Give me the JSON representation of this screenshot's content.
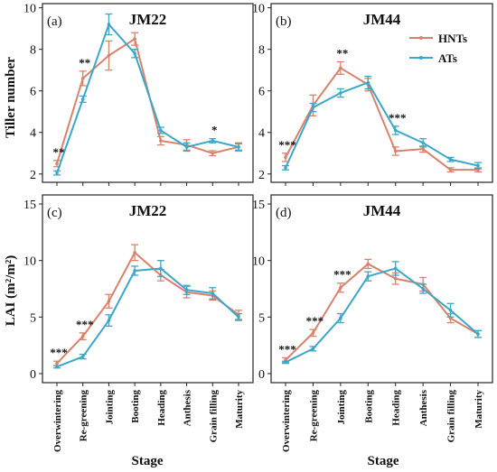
{
  "chart_data": {
    "type": "line",
    "categories": [
      "Overwintering",
      "Re-greening",
      "Jointing",
      "Booting",
      "Heading",
      "Anthesis",
      "Grain filling",
      "Maturity"
    ],
    "xlabel": "Stage",
    "legend": {
      "placement": "top-right",
      "entries": [
        {
          "name": "HNTs",
          "color": "#d9826b"
        },
        {
          "name": "ATs",
          "color": "#3ba7c9"
        }
      ]
    },
    "rows": [
      {
        "ylabel": "Tiller number",
        "ylim": [
          1.6,
          10.2
        ],
        "yticks": [
          2,
          4,
          6,
          8,
          10
        ]
      },
      {
        "ylabel": "LAI (m²/m²)",
        "ylim": [
          -0.8,
          15.8
        ],
        "yticks": [
          0,
          5,
          10,
          15
        ]
      }
    ],
    "panels": [
      {
        "tag": "(a)",
        "title": "JM22",
        "row": 0,
        "col": 0,
        "series": [
          {
            "name": "HNTs",
            "values": [
              2.5,
              6.6,
              7.7,
              8.5,
              3.6,
              3.4,
              3.0,
              3.3
            ],
            "errors": [
              0.15,
              0.35,
              0.7,
              0.3,
              0.2,
              0.25,
              0.12,
              0.2
            ]
          },
          {
            "name": "ATs",
            "values": [
              2.05,
              5.6,
              9.2,
              7.8,
              4.1,
              3.3,
              3.6,
              3.3
            ],
            "errors": [
              0.1,
              0.15,
              0.5,
              0.2,
              0.15,
              0.2,
              0.1,
              0.15
            ]
          }
        ],
        "significance": [
          {
            "category": "Overwintering",
            "label": "**"
          },
          {
            "category": "Re-greening",
            "label": "**"
          },
          {
            "category": "Grain filling",
            "label": "*"
          }
        ]
      },
      {
        "tag": "(b)",
        "title": "JM44",
        "row": 0,
        "col": 1,
        "series": [
          {
            "name": "HNTs",
            "values": [
              2.8,
              5.3,
              7.1,
              6.3,
              3.1,
              3.2,
              2.2,
              2.2
            ],
            "errors": [
              0.2,
              0.5,
              0.3,
              0.3,
              0.2,
              0.15,
              0.1,
              0.1
            ]
          },
          {
            "name": "ATs",
            "values": [
              2.3,
              5.2,
              5.9,
              6.4,
              4.1,
              3.5,
              2.7,
              2.4
            ],
            "errors": [
              0.1,
              0.2,
              0.2,
              0.3,
              0.2,
              0.2,
              0.1,
              0.15
            ]
          }
        ],
        "significance": [
          {
            "category": "Overwintering",
            "label": "***"
          },
          {
            "category": "Jointing",
            "label": "**"
          },
          {
            "category": "Heading",
            "label": "***"
          }
        ],
        "legend": true
      },
      {
        "tag": "(c)",
        "title": "JM22",
        "row": 1,
        "col": 0,
        "series": [
          {
            "name": "HNTs",
            "values": [
              0.9,
              3.3,
              6.4,
              10.7,
              8.7,
              7.2,
              6.9,
              5.2
            ],
            "errors": [
              0.2,
              0.3,
              0.6,
              0.7,
              0.5,
              0.5,
              0.4,
              0.4
            ]
          },
          {
            "name": "ATs",
            "values": [
              0.6,
              1.5,
              4.7,
              9.1,
              9.3,
              7.4,
              7.1,
              5.0
            ],
            "errors": [
              0.1,
              0.2,
              0.5,
              0.4,
              0.7,
              0.4,
              0.5,
              0.3
            ]
          }
        ],
        "significance": [
          {
            "category": "Overwintering",
            "label": "***"
          },
          {
            "category": "Re-greening",
            "label": "***"
          }
        ]
      },
      {
        "tag": "(d)",
        "title": "JM44",
        "row": 1,
        "col": 1,
        "series": [
          {
            "name": "HNTs",
            "values": [
              1.2,
              3.6,
              7.6,
              9.7,
              8.4,
              7.9,
              4.9,
              3.5
            ],
            "errors": [
              0.2,
              0.3,
              0.4,
              0.4,
              0.5,
              0.6,
              0.4,
              0.3
            ]
          },
          {
            "name": "ATs",
            "values": [
              1.0,
              2.2,
              4.9,
              8.6,
              9.3,
              7.5,
              5.6,
              3.5
            ],
            "errors": [
              0.1,
              0.2,
              0.4,
              0.4,
              0.6,
              0.4,
              0.6,
              0.3
            ]
          }
        ],
        "significance": [
          {
            "category": "Overwintering",
            "label": "***"
          },
          {
            "category": "Re-greening",
            "label": "***"
          },
          {
            "category": "Jointing",
            "label": "***"
          }
        ]
      }
    ]
  }
}
